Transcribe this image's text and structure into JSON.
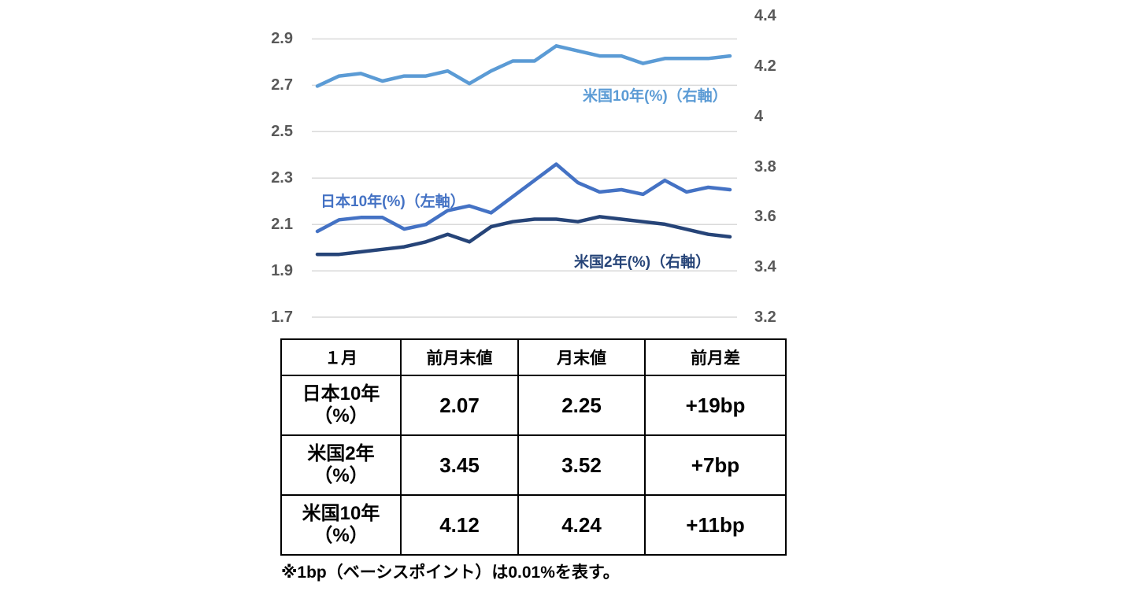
{
  "chart_data": {
    "type": "line",
    "title": "",
    "grid": true,
    "legend": "inline-labels",
    "x_tick_labels": [],
    "left_axis": {
      "range": [
        1.7,
        3.0
      ],
      "ticks": [
        {
          "label": "2.9",
          "value": 2.9
        },
        {
          "label": "2.7",
          "value": 2.7
        },
        {
          "label": "2.5",
          "value": 2.5
        },
        {
          "label": "2.3",
          "value": 2.3
        },
        {
          "label": "2.1",
          "value": 2.1
        },
        {
          "label": "1.9",
          "value": 1.9
        },
        {
          "label": "1.7",
          "value": 1.7
        }
      ]
    },
    "right_axis": {
      "range": [
        3.2,
        4.4
      ],
      "ticks": [
        {
          "label": "4.4",
          "value": 4.4
        },
        {
          "label": "4.2",
          "value": 4.2
        },
        {
          "label": "4",
          "value": 4.0
        },
        {
          "label": "3.8",
          "value": 3.8
        },
        {
          "label": "3.6",
          "value": 3.6
        },
        {
          "label": "3.4",
          "value": 3.4
        },
        {
          "label": "3.2",
          "value": 3.2
        }
      ]
    },
    "series": [
      {
        "id": "jp10y",
        "name": "日本10年(%)（左軸）",
        "axis": "left",
        "color": "#4472C4",
        "values": [
          2.07,
          2.12,
          2.13,
          2.13,
          2.08,
          2.1,
          2.16,
          2.18,
          2.15,
          2.22,
          2.29,
          2.36,
          2.28,
          2.24,
          2.25,
          2.23,
          2.29,
          2.24,
          2.26,
          2.25
        ]
      },
      {
        "id": "us2y",
        "name": "米国2年(%)（右軸）",
        "axis": "right",
        "color": "#264478",
        "values": [
          3.45,
          3.45,
          3.46,
          3.47,
          3.48,
          3.5,
          3.53,
          3.5,
          3.56,
          3.58,
          3.59,
          3.59,
          3.58,
          3.6,
          3.59,
          3.58,
          3.57,
          3.55,
          3.53,
          3.52
        ]
      },
      {
        "id": "us10y",
        "name": "米国10年(%)（右軸）",
        "axis": "right",
        "color": "#5B9BD5",
        "values": [
          4.12,
          4.16,
          4.17,
          4.14,
          4.16,
          4.16,
          4.18,
          4.13,
          4.18,
          4.22,
          4.22,
          4.28,
          4.26,
          4.24,
          4.24,
          4.21,
          4.23,
          4.23,
          4.23,
          4.24
        ]
      }
    ]
  },
  "table": {
    "header": [
      "１月",
      "前月末値",
      "月末値",
      "前月差"
    ],
    "rows": [
      {
        "label_line1": "日本10年",
        "label_line2": "（%）",
        "prev": "2.07",
        "end": "2.25",
        "diff": "+19bp"
      },
      {
        "label_line1": "米国2年",
        "label_line2": "（%）",
        "prev": "3.45",
        "end": "3.52",
        "diff": "+7bp"
      },
      {
        "label_line1": "米国10年",
        "label_line2": "（%）",
        "prev": "4.12",
        "end": "4.24",
        "diff": "+11bp"
      }
    ]
  },
  "footnote": "※1bp（ベーシスポイント）は0.01%を表す。"
}
